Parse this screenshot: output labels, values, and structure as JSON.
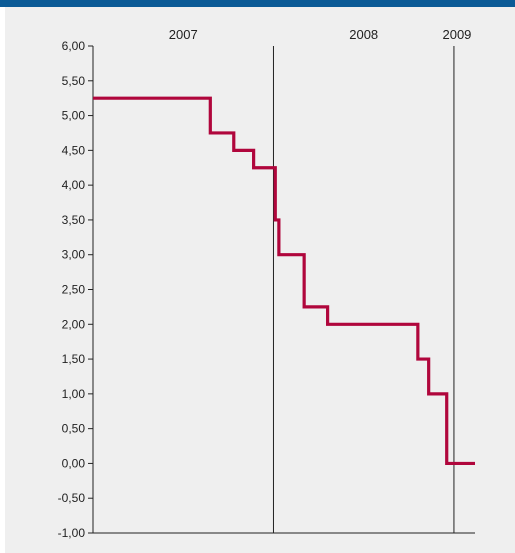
{
  "chart_data": {
    "type": "line",
    "step": true,
    "title": "",
    "xlabel": "",
    "ylabel": "",
    "ylim": [
      -1,
      6
    ],
    "y_ticks": [
      6,
      5.5,
      5,
      4.5,
      4,
      3.5,
      3,
      2.5,
      2,
      1.5,
      1,
      0.5,
      0,
      -0.5,
      -1
    ],
    "y_tick_labels": [
      "6,00",
      "5,50",
      "5,00",
      "4,50",
      "4,00",
      "3,50",
      "3,00",
      "2,50",
      "2,00",
      "1,50",
      "1,00",
      "0,50",
      "0,00",
      "-0,50",
      "-1,00"
    ],
    "x_unit": "year (decimal)",
    "xlim": [
      2007.0,
      2009.1167
    ],
    "year_labels": [
      {
        "label": "2007",
        "x": 2007.5
      },
      {
        "label": "2008",
        "x": 2008.5
      },
      {
        "label": "2009",
        "x": 2009.0167
      }
    ],
    "year_boundaries": [
      2008.0,
      2009.0
    ],
    "grid": false,
    "legend": "none",
    "line_color": "#b0063c",
    "series": [
      {
        "points": [
          [
            2007.0,
            5.25
          ],
          [
            2007.65,
            5.25
          ],
          [
            2007.65,
            4.75
          ],
          [
            2007.78,
            4.75
          ],
          [
            2007.78,
            4.5
          ],
          [
            2007.89,
            4.5
          ],
          [
            2007.89,
            4.25
          ],
          [
            2008.01,
            4.25
          ],
          [
            2008.01,
            3.5
          ],
          [
            2008.03,
            3.5
          ],
          [
            2008.03,
            3.0
          ],
          [
            2008.17,
            3.0
          ],
          [
            2008.17,
            2.25
          ],
          [
            2008.3,
            2.25
          ],
          [
            2008.3,
            2.0
          ],
          [
            2008.8,
            2.0
          ],
          [
            2008.8,
            1.5
          ],
          [
            2008.86,
            1.5
          ],
          [
            2008.86,
            1.0
          ],
          [
            2008.96,
            1.0
          ],
          [
            2008.96,
            0.0
          ],
          [
            2009.1167,
            0.0
          ]
        ]
      }
    ]
  }
}
